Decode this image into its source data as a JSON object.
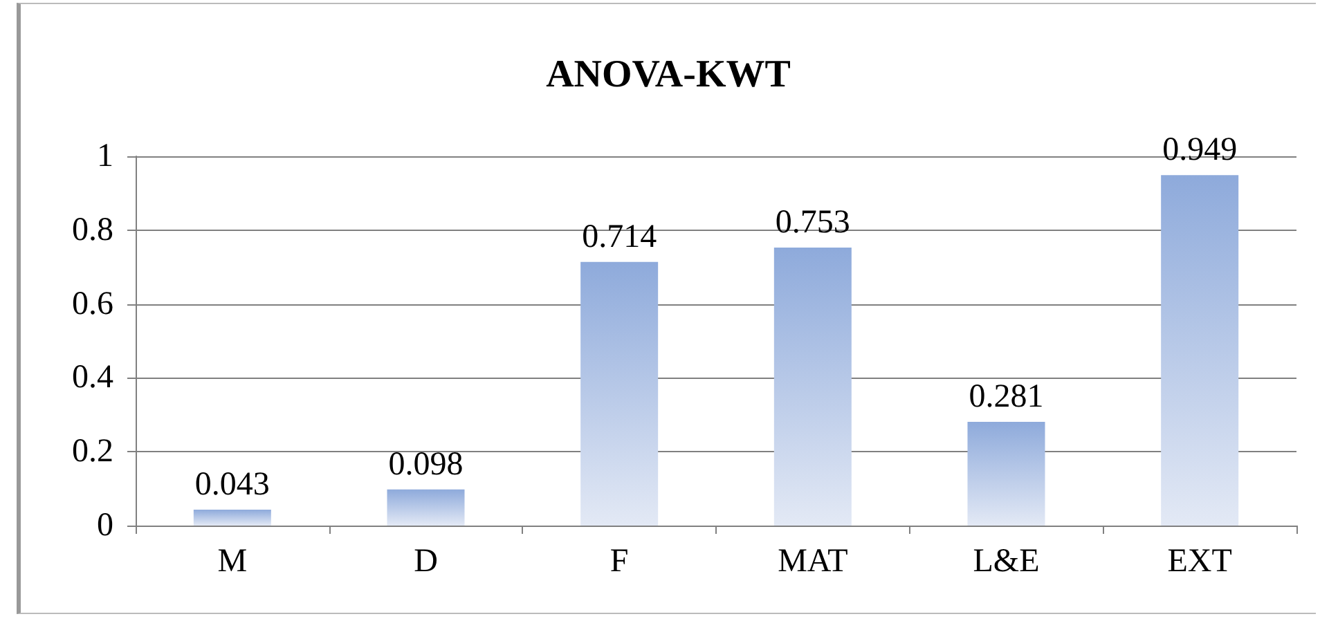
{
  "chart_data": {
    "type": "bar",
    "title": "ANOVA-KWT",
    "categories": [
      "M",
      "D",
      "F",
      "MAT",
      "L&E",
      "EXT"
    ],
    "values": [
      0.043,
      0.098,
      0.714,
      0.753,
      0.281,
      0.949
    ],
    "color": "#8eaadb",
    "ylim": [
      0,
      1
    ],
    "yticks": [
      0,
      0.2,
      0.4,
      0.6,
      0.8,
      1
    ],
    "grid": "y",
    "data_labels": true
  }
}
